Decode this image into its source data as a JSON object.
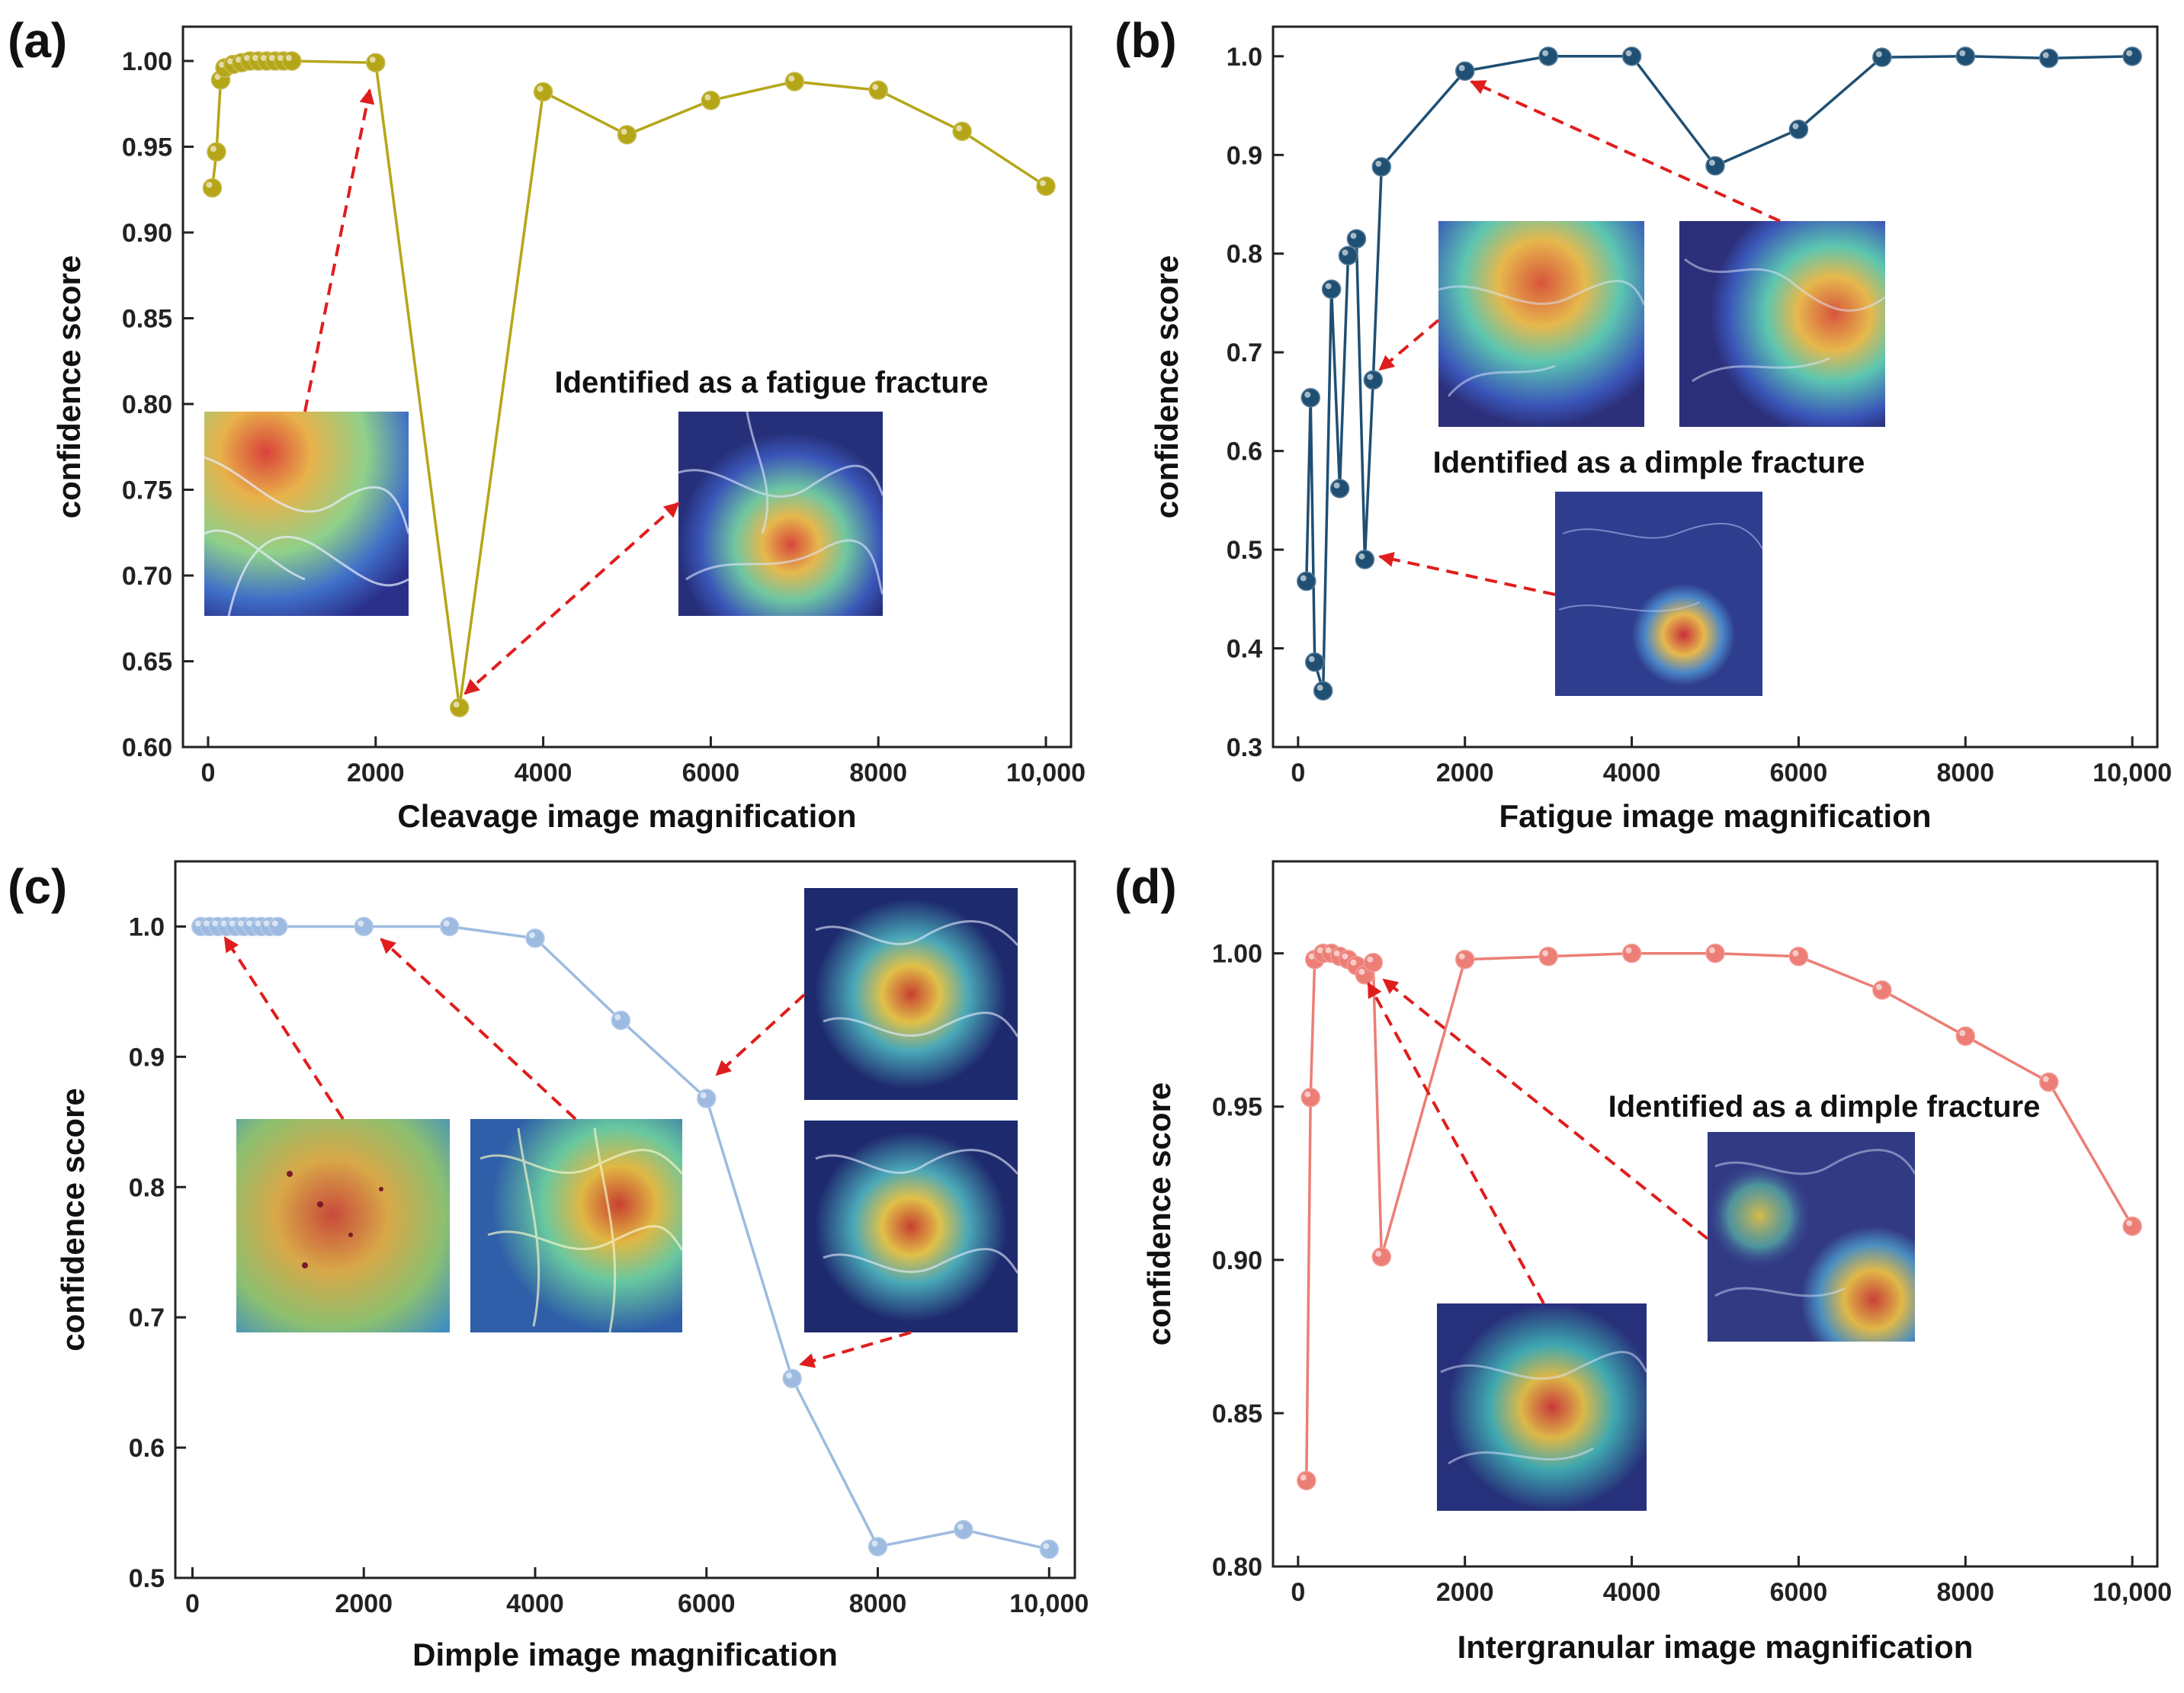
{
  "chart_data": [
    {
      "id": "a",
      "panel_label": "(a)",
      "type": "line",
      "xlabel": "Cleavage image magnification",
      "ylabel": "confidence score",
      "xlim": [
        -300,
        10300
      ],
      "ylim": [
        0.6,
        1.02
      ],
      "xticks": [
        0,
        2000,
        4000,
        6000,
        8000,
        10000
      ],
      "xtick_labels": [
        "0",
        "2000",
        "4000",
        "6000",
        "8000",
        "10,000"
      ],
      "yticks": [
        0.6,
        0.65,
        0.7,
        0.75,
        0.8,
        0.85,
        0.9,
        0.95,
        1.0
      ],
      "ytick_labels": [
        "0.60",
        "0.65",
        "0.70",
        "0.75",
        "0.80",
        "0.85",
        "0.90",
        "0.95",
        "1.00"
      ],
      "color": "#b5a618",
      "series": [
        {
          "x": [
            50,
            100,
            150,
            200,
            300,
            400,
            500,
            600,
            700,
            800,
            900,
            1000,
            2000,
            3000,
            4000,
            5000,
            6000,
            7000,
            8000,
            9000,
            10000
          ],
          "y": [
            0.926,
            0.947,
            0.989,
            0.996,
            0.998,
            0.999,
            1.0,
            1.0,
            1.0,
            1.0,
            1.0,
            1.0,
            0.999,
            0.623,
            0.982,
            0.957,
            0.977,
            0.988,
            0.983,
            0.959,
            0.927
          ]
        }
      ],
      "annotations": [
        "Identified as a fatigue fracture"
      ]
    },
    {
      "id": "b",
      "panel_label": "(b)",
      "type": "line",
      "xlabel": "Fatigue image magnification",
      "ylabel": "confidence score",
      "xlim": [
        -300,
        10300
      ],
      "ylim": [
        0.3,
        1.03
      ],
      "xticks": [
        0,
        2000,
        4000,
        6000,
        8000,
        10000
      ],
      "xtick_labels": [
        "0",
        "2000",
        "4000",
        "6000",
        "8000",
        "10,000"
      ],
      "yticks": [
        0.3,
        0.4,
        0.5,
        0.6,
        0.7,
        0.8,
        0.9,
        1.0
      ],
      "ytick_labels": [
        "0.3",
        "0.4",
        "0.5",
        "0.6",
        "0.7",
        "0.8",
        "0.9",
        "1.0"
      ],
      "color": "#1f4f73",
      "series": [
        {
          "x": [
            100,
            150,
            200,
            300,
            400,
            500,
            600,
            700,
            800,
            900,
            1000,
            2000,
            3000,
            4000,
            5000,
            6000,
            7000,
            8000,
            9000,
            10000
          ],
          "y": [
            0.468,
            0.654,
            0.386,
            0.357,
            0.764,
            0.562,
            0.798,
            0.815,
            0.49,
            0.672,
            0.888,
            0.985,
            1.0,
            1.0,
            0.889,
            0.926,
            0.999,
            1.0,
            0.998,
            1.0
          ]
        }
      ],
      "annotations": [
        "Identified as a dimple fracture"
      ]
    },
    {
      "id": "c",
      "panel_label": "(c)",
      "type": "line",
      "xlabel": "Dimple image magnification",
      "ylabel": "confidence score",
      "xlim": [
        -200,
        10300
      ],
      "ylim": [
        0.5,
        1.05
      ],
      "xticks": [
        0,
        2000,
        4000,
        6000,
        8000,
        10000
      ],
      "xtick_labels": [
        "0",
        "2000",
        "4000",
        "6000",
        "8000",
        "10,000"
      ],
      "yticks": [
        0.5,
        0.6,
        0.7,
        0.8,
        0.9,
        1.0
      ],
      "ytick_labels": [
        "0.5",
        "0.6",
        "0.7",
        "0.8",
        "0.9",
        "1.0"
      ],
      "color": "#9dbbe0",
      "series": [
        {
          "x": [
            100,
            200,
            300,
            400,
            500,
            600,
            700,
            800,
            900,
            1000,
            2000,
            3000,
            4000,
            5000,
            6000,
            7000,
            8000,
            9000,
            10000
          ],
          "y": [
            1.0,
            1.0,
            1.0,
            1.0,
            1.0,
            1.0,
            1.0,
            1.0,
            1.0,
            1.0,
            1.0,
            1.0,
            0.991,
            0.928,
            0.868,
            0.653,
            0.524,
            0.537,
            0.522
          ]
        }
      ],
      "annotations": []
    },
    {
      "id": "d",
      "panel_label": "(d)",
      "type": "line",
      "xlabel": "Intergranular image magnification",
      "ylabel": "confidence score",
      "xlim": [
        -300,
        10300
      ],
      "ylim": [
        0.8,
        1.03
      ],
      "xticks": [
        0,
        2000,
        4000,
        6000,
        8000,
        10000
      ],
      "xtick_labels": [
        "0",
        "2000",
        "4000",
        "6000",
        "8000",
        "10,000"
      ],
      "yticks": [
        0.8,
        0.85,
        0.9,
        0.95,
        1.0
      ],
      "ytick_labels": [
        "0.80",
        "0.85",
        "0.90",
        "0.95",
        "1.00"
      ],
      "color": "#ec7e76",
      "series": [
        {
          "x": [
            100,
            150,
            200,
            300,
            400,
            500,
            600,
            700,
            800,
            900,
            1000,
            2000,
            3000,
            4000,
            5000,
            6000,
            7000,
            8000,
            9000,
            10000
          ],
          "y": [
            0.828,
            0.953,
            0.998,
            1.0,
            1.0,
            0.999,
            0.998,
            0.996,
            0.993,
            0.997,
            0.901,
            0.998,
            0.999,
            1.0,
            1.0,
            0.999,
            0.988,
            0.973,
            0.958,
            0.911
          ]
        }
      ],
      "annotations": [
        "Identified as a dimple fracture"
      ]
    }
  ]
}
